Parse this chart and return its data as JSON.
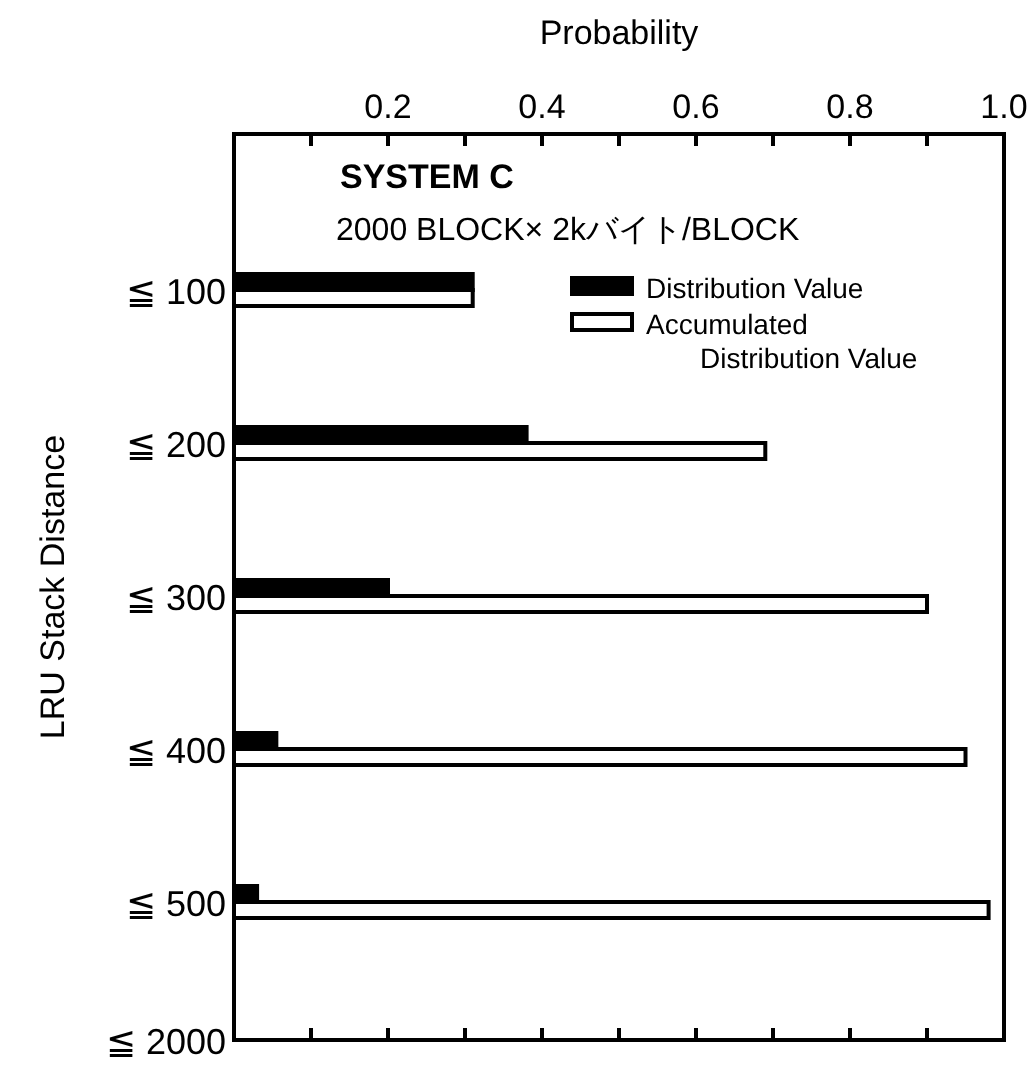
{
  "chart_data": {
    "type": "bar",
    "orientation": "horizontal",
    "title": "SYSTEM C",
    "subtitle": "2000 BLOCK× 2kバイト/BLOCK",
    "xlabel": "Probability",
    "ylabel": "LRU Stack Distance",
    "categories": [
      "≦ 100",
      "≦ 200",
      "≦ 300",
      "≦ 400",
      "≦ 500",
      "≦ 2000"
    ],
    "series": [
      {
        "name": "Distribution Value",
        "color": "#000000",
        "values": [
          0.31,
          0.38,
          0.2,
          0.055,
          0.03,
          null
        ]
      },
      {
        "name": "Accumulated Distribution Value",
        "color": "#ffffff",
        "values": [
          0.31,
          0.69,
          0.9,
          0.95,
          0.98,
          null
        ]
      }
    ],
    "xlim": [
      0,
      1.0
    ],
    "xticks": [
      {
        "value": 0.1,
        "label": null
      },
      0.2,
      {
        "value": 0.3,
        "label": null
      },
      0.4,
      {
        "value": 0.5,
        "label": null
      },
      0.6,
      {
        "value": 0.7,
        "label": null
      },
      0.8,
      {
        "value": 0.9,
        "label": null
      },
      {
        "value": 1.0,
        "label": "1.0"
      }
    ],
    "legend": "top right",
    "grid": false
  }
}
